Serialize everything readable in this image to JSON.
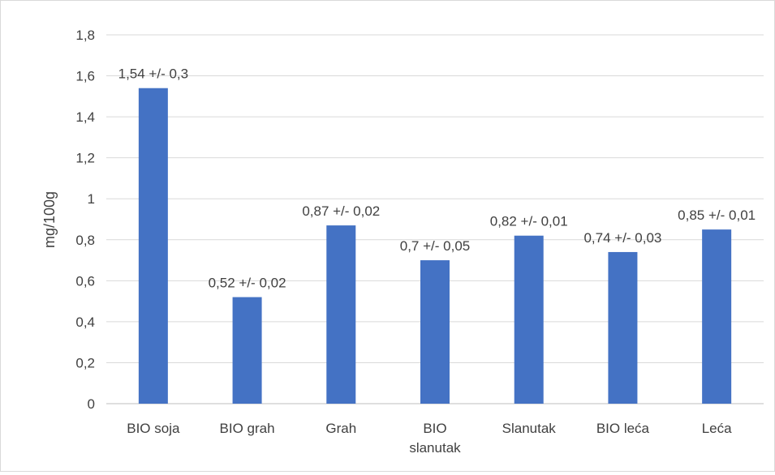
{
  "chart_data": {
    "type": "bar",
    "title": "",
    "xlabel": "",
    "ylabel": "mg/100g",
    "ylim": [
      0,
      1.8
    ],
    "yticks": [
      0,
      0.2,
      0.4,
      0.6,
      0.8,
      1,
      1.2,
      1.4,
      1.6,
      1.8
    ],
    "ytick_labels": [
      "0",
      "0,2",
      "0,4",
      "0,6",
      "0,8",
      "1",
      "1,2",
      "1,4",
      "1,6",
      "1,8"
    ],
    "grid": true,
    "legend": "none",
    "bar_color": "#4472c4",
    "categories": [
      [
        "BIO soja"
      ],
      [
        "BIO grah"
      ],
      [
        "Grah"
      ],
      [
        "BIO",
        "slanutak"
      ],
      [
        "Slanutak"
      ],
      [
        "BIO leća"
      ],
      [
        "Leća"
      ]
    ],
    "values": [
      1.54,
      0.52,
      0.87,
      0.7,
      0.82,
      0.74,
      0.85
    ],
    "data_labels": [
      "1,54 +/- 0,3",
      "0,52 +/- 0,02",
      "0,87 +/- 0,02",
      "0,7 +/- 0,05",
      "0,82 +/- 0,01",
      "0,74 +/- 0,03",
      "0,85 +/- 0,01"
    ]
  }
}
